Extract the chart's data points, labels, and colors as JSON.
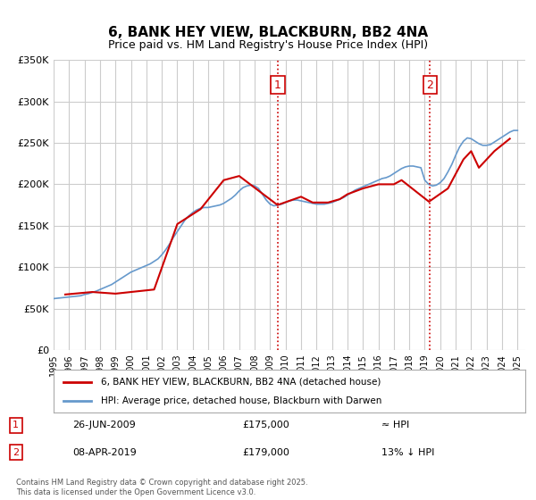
{
  "title": "6, BANK HEY VIEW, BLACKBURN, BB2 4NA",
  "subtitle": "Price paid vs. HM Land Registry's House Price Index (HPI)",
  "legend_line1": "6, BANK HEY VIEW, BLACKBURN, BB2 4NA (detached house)",
  "legend_line2": "HPI: Average price, detached house, Blackburn with Darwen",
  "annotation1_label": "1",
  "annotation1_date": "26-JUN-2009",
  "annotation1_price": "£175,000",
  "annotation1_hpi": "≈ HPI",
  "annotation2_label": "2",
  "annotation2_date": "08-APR-2019",
  "annotation2_price": "£179,000",
  "annotation2_hpi": "13% ↓ HPI",
  "copyright": "Contains HM Land Registry data © Crown copyright and database right 2025.\nThis data is licensed under the Open Government Licence v3.0.",
  "ylim": [
    0,
    350000
  ],
  "yticks": [
    0,
    50000,
    100000,
    150000,
    200000,
    250000,
    300000,
    350000
  ],
  "ytick_labels": [
    "£0",
    "£50K",
    "£100K",
    "£150K",
    "£200K",
    "£250K",
    "£300K",
    "£350K"
  ],
  "xlim_start": 1995.0,
  "xlim_end": 2025.5,
  "xticks": [
    1995,
    1996,
    1997,
    1998,
    1999,
    2000,
    2001,
    2002,
    2003,
    2004,
    2005,
    2006,
    2007,
    2008,
    2009,
    2010,
    2011,
    2012,
    2013,
    2014,
    2015,
    2016,
    2017,
    2018,
    2019,
    2020,
    2021,
    2022,
    2023,
    2024,
    2025
  ],
  "vline1_x": 2009.5,
  "vline2_x": 2019.33,
  "marker1_x": 2009.5,
  "marker1_y": 175000,
  "marker2_x": 2019.33,
  "marker2_y": 179000,
  "red_line_color": "#cc0000",
  "blue_line_color": "#6699cc",
  "background_color": "#ffffff",
  "grid_color": "#cccccc",
  "title_fontsize": 11,
  "subtitle_fontsize": 9,
  "axis_fontsize": 8,
  "hpi_data_x": [
    1995.0,
    1995.25,
    1995.5,
    1995.75,
    1996.0,
    1996.25,
    1996.5,
    1996.75,
    1997.0,
    1997.25,
    1997.5,
    1997.75,
    1998.0,
    1998.25,
    1998.5,
    1998.75,
    1999.0,
    1999.25,
    1999.5,
    1999.75,
    2000.0,
    2000.25,
    2000.5,
    2000.75,
    2001.0,
    2001.25,
    2001.5,
    2001.75,
    2002.0,
    2002.25,
    2002.5,
    2002.75,
    2003.0,
    2003.25,
    2003.5,
    2003.75,
    2004.0,
    2004.25,
    2004.5,
    2004.75,
    2005.0,
    2005.25,
    2005.5,
    2005.75,
    2006.0,
    2006.25,
    2006.5,
    2006.75,
    2007.0,
    2007.25,
    2007.5,
    2007.75,
    2008.0,
    2008.25,
    2008.5,
    2008.75,
    2009.0,
    2009.25,
    2009.5,
    2009.75,
    2010.0,
    2010.25,
    2010.5,
    2010.75,
    2011.0,
    2011.25,
    2011.5,
    2011.75,
    2012.0,
    2012.25,
    2012.5,
    2012.75,
    2013.0,
    2013.25,
    2013.5,
    2013.75,
    2014.0,
    2014.25,
    2014.5,
    2014.75,
    2015.0,
    2015.25,
    2015.5,
    2015.75,
    2016.0,
    2016.25,
    2016.5,
    2016.75,
    2017.0,
    2017.25,
    2017.5,
    2017.75,
    2018.0,
    2018.25,
    2018.5,
    2018.75,
    2019.0,
    2019.25,
    2019.5,
    2019.75,
    2020.0,
    2020.25,
    2020.5,
    2020.75,
    2021.0,
    2021.25,
    2021.5,
    2021.75,
    2022.0,
    2022.25,
    2022.5,
    2022.75,
    2023.0,
    2023.25,
    2023.5,
    2023.75,
    2024.0,
    2024.25,
    2024.5,
    2024.75,
    2025.0
  ],
  "hpi_data_y": [
    62000,
    62500,
    63000,
    63500,
    64000,
    64500,
    65000,
    65500,
    67000,
    68000,
    69500,
    71000,
    73000,
    75000,
    77000,
    79000,
    82000,
    85000,
    88000,
    91000,
    94000,
    96000,
    98000,
    100000,
    102000,
    104000,
    107000,
    110000,
    115000,
    121000,
    128000,
    136000,
    143000,
    150000,
    157000,
    162000,
    166000,
    169000,
    171000,
    172000,
    172000,
    173000,
    174000,
    175000,
    177000,
    180000,
    183000,
    187000,
    192000,
    196000,
    198000,
    199000,
    198000,
    195000,
    188000,
    181000,
    176000,
    174000,
    175000,
    176000,
    178000,
    180000,
    181000,
    181000,
    180000,
    179000,
    178000,
    177000,
    176000,
    176000,
    176000,
    177000,
    178000,
    180000,
    182000,
    184000,
    187000,
    190000,
    193000,
    195000,
    197000,
    199000,
    201000,
    203000,
    205000,
    207000,
    208000,
    210000,
    213000,
    216000,
    219000,
    221000,
    222000,
    222000,
    221000,
    220000,
    205000,
    200000,
    198000,
    199000,
    202000,
    207000,
    215000,
    224000,
    235000,
    245000,
    252000,
    256000,
    255000,
    252000,
    249000,
    247000,
    247000,
    248000,
    251000,
    254000,
    257000,
    260000,
    263000,
    265000,
    265000
  ],
  "price_paid_x": [
    1995.75,
    1997.5,
    1999.0,
    2001.5,
    2003.0,
    2004.5,
    2006.0,
    2007.0,
    2009.48,
    2011.0,
    2011.75,
    2012.75,
    2013.5,
    2014.0,
    2015.0,
    2016.0,
    2017.0,
    2017.5,
    2019.27,
    2020.5,
    2021.5,
    2022.0,
    2022.5,
    2023.5,
    2024.5
  ],
  "price_paid_y": [
    67000,
    70000,
    68000,
    73000,
    152000,
    170000,
    205000,
    210000,
    175000,
    185000,
    178000,
    178000,
    182000,
    188000,
    195000,
    200000,
    200000,
    205000,
    179000,
    195000,
    230000,
    240000,
    220000,
    240000,
    255000
  ]
}
